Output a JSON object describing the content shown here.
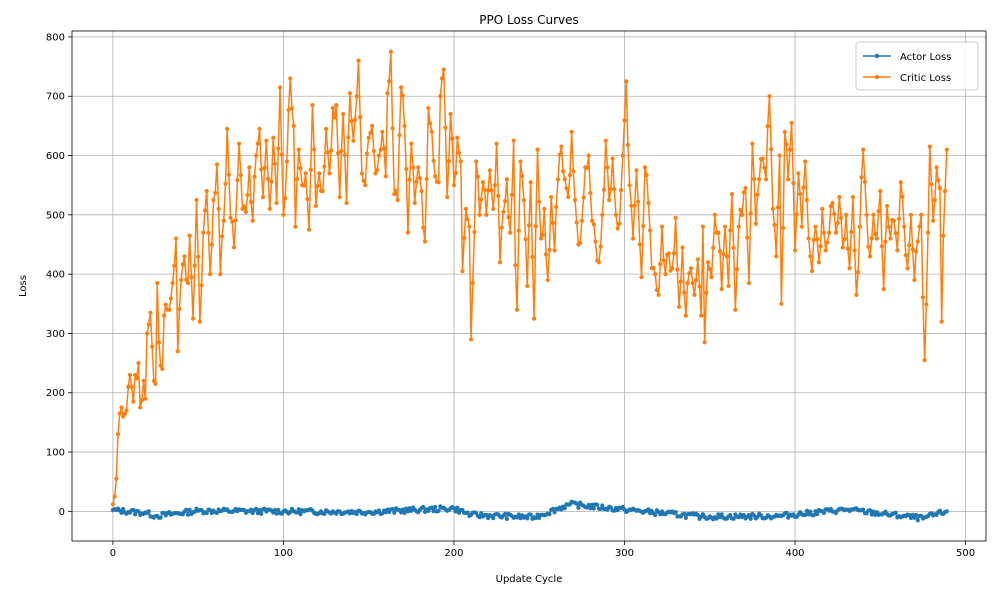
{
  "chart_data": {
    "type": "line",
    "title": "PPO Loss Curves",
    "xlabel": "Update Cycle",
    "ylabel": "Loss",
    "xlim": [
      -24,
      512
    ],
    "ylim": [
      -50,
      810
    ],
    "xticks": [
      0,
      100,
      200,
      300,
      400,
      500
    ],
    "yticks": [
      0,
      100,
      200,
      300,
      400,
      500,
      600,
      700,
      800
    ],
    "grid": true,
    "legend_position": "top-right",
    "colors": {
      "actor": "#1f77b4",
      "critic": "#ff7f0e"
    },
    "series_meta": [
      {
        "name": "Actor Loss",
        "color": "#1f77b4"
      },
      {
        "name": "Critic Loss",
        "color": "#ff7f0e"
      }
    ],
    "critic_anchors": [
      [
        0,
        12
      ],
      [
        1,
        25
      ],
      [
        2,
        55
      ],
      [
        3,
        130
      ],
      [
        4,
        165
      ],
      [
        5,
        175
      ],
      [
        6,
        160
      ],
      [
        8,
        170
      ],
      [
        9,
        210
      ],
      [
        10,
        230
      ],
      [
        12,
        185
      ],
      [
        13,
        230
      ],
      [
        15,
        250
      ],
      [
        16,
        175
      ],
      [
        18,
        220
      ],
      [
        19,
        190
      ],
      [
        20,
        300
      ],
      [
        22,
        335
      ],
      [
        24,
        220
      ],
      [
        25,
        215
      ],
      [
        26,
        385
      ],
      [
        27,
        285
      ],
      [
        29,
        240
      ],
      [
        30,
        330
      ],
      [
        33,
        340
      ],
      [
        35,
        385
      ],
      [
        37,
        460
      ],
      [
        38,
        270
      ],
      [
        40,
        390
      ],
      [
        42,
        430
      ],
      [
        44,
        385
      ],
      [
        45,
        465
      ],
      [
        47,
        325
      ],
      [
        49,
        525
      ],
      [
        51,
        320
      ],
      [
        53,
        470
      ],
      [
        55,
        540
      ],
      [
        57,
        400
      ],
      [
        59,
        525
      ],
      [
        61,
        585
      ],
      [
        63,
        400
      ],
      [
        65,
        490
      ],
      [
        67,
        645
      ],
      [
        69,
        495
      ],
      [
        71,
        445
      ],
      [
        74,
        620
      ],
      [
        76,
        510
      ],
      [
        78,
        505
      ],
      [
        80,
        580
      ],
      [
        82,
        490
      ],
      [
        84,
        600
      ],
      [
        86,
        645
      ],
      [
        88,
        530
      ],
      [
        90,
        625
      ],
      [
        92,
        510
      ],
      [
        94,
        630
      ],
      [
        96,
        520
      ],
      [
        98,
        715
      ],
      [
        100,
        500
      ],
      [
        102,
        590
      ],
      [
        104,
        730
      ],
      [
        106,
        650
      ],
      [
        107,
        480
      ],
      [
        109,
        610
      ],
      [
        111,
        550
      ],
      [
        113,
        570
      ],
      [
        115,
        475
      ],
      [
        117,
        685
      ],
      [
        119,
        515
      ],
      [
        121,
        570
      ],
      [
        123,
        540
      ],
      [
        125,
        645
      ],
      [
        127,
        570
      ],
      [
        129,
        680
      ],
      [
        131,
        685
      ],
      [
        133,
        530
      ],
      [
        135,
        670
      ],
      [
        137,
        520
      ],
      [
        139,
        705
      ],
      [
        141,
        625
      ],
      [
        143,
        700
      ],
      [
        144,
        760
      ],
      [
        146,
        570
      ],
      [
        148,
        550
      ],
      [
        150,
        630
      ],
      [
        152,
        650
      ],
      [
        154,
        570
      ],
      [
        156,
        600
      ],
      [
        158,
        640
      ],
      [
        160,
        565
      ],
      [
        161,
        705
      ],
      [
        163,
        775
      ],
      [
        165,
        535
      ],
      [
        167,
        525
      ],
      [
        169,
        715
      ],
      [
        171,
        650
      ],
      [
        173,
        470
      ],
      [
        175,
        620
      ],
      [
        177,
        520
      ],
      [
        179,
        580
      ],
      [
        181,
        540
      ],
      [
        183,
        455
      ],
      [
        185,
        680
      ],
      [
        187,
        640
      ],
      [
        189,
        565
      ],
      [
        191,
        555
      ],
      [
        192,
        700
      ],
      [
        194,
        745
      ],
      [
        196,
        530
      ],
      [
        198,
        670
      ],
      [
        200,
        550
      ],
      [
        202,
        630
      ],
      [
        204,
        590
      ],
      [
        205,
        405
      ],
      [
        207,
        510
      ],
      [
        209,
        480
      ],
      [
        210,
        290
      ],
      [
        211,
        385
      ],
      [
        213,
        590
      ],
      [
        215,
        500
      ],
      [
        217,
        555
      ],
      [
        219,
        500
      ],
      [
        221,
        575
      ],
      [
        223,
        510
      ],
      [
        225,
        620
      ],
      [
        227,
        420
      ],
      [
        229,
        505
      ],
      [
        231,
        560
      ],
      [
        233,
        470
      ],
      [
        235,
        625
      ],
      [
        236,
        415
      ],
      [
        237,
        340
      ],
      [
        239,
        590
      ],
      [
        241,
        525
      ],
      [
        243,
        380
      ],
      [
        245,
        555
      ],
      [
        247,
        325
      ],
      [
        249,
        610
      ],
      [
        251,
        460
      ],
      [
        253,
        510
      ],
      [
        255,
        390
      ],
      [
        257,
        530
      ],
      [
        259,
        440
      ],
      [
        261,
        560
      ],
      [
        263,
        615
      ],
      [
        265,
        560
      ],
      [
        267,
        530
      ],
      [
        269,
        640
      ],
      [
        271,
        525
      ],
      [
        273,
        450
      ],
      [
        275,
        490
      ],
      [
        277,
        580
      ],
      [
        279,
        600
      ],
      [
        281,
        490
      ],
      [
        283,
        455
      ],
      [
        285,
        420
      ],
      [
        287,
        500
      ],
      [
        289,
        625
      ],
      [
        291,
        525
      ],
      [
        293,
        595
      ],
      [
        295,
        500
      ],
      [
        297,
        485
      ],
      [
        299,
        600
      ],
      [
        301,
        725
      ],
      [
        303,
        550
      ],
      [
        305,
        460
      ],
      [
        307,
        575
      ],
      [
        309,
        450
      ],
      [
        310,
        395
      ],
      [
        312,
        580
      ],
      [
        314,
        520
      ],
      [
        316,
        410
      ],
      [
        318,
        400
      ],
      [
        320,
        365
      ],
      [
        322,
        480
      ],
      [
        324,
        400
      ],
      [
        326,
        435
      ],
      [
        328,
        410
      ],
      [
        330,
        495
      ],
      [
        332,
        345
      ],
      [
        334,
        445
      ],
      [
        336,
        330
      ],
      [
        337,
        385
      ],
      [
        339,
        410
      ],
      [
        341,
        365
      ],
      [
        343,
        425
      ],
      [
        345,
        330
      ],
      [
        346,
        480
      ],
      [
        347,
        285
      ],
      [
        349,
        420
      ],
      [
        351,
        395
      ],
      [
        353,
        500
      ],
      [
        355,
        470
      ],
      [
        357,
        375
      ],
      [
        359,
        480
      ],
      [
        361,
        380
      ],
      [
        363,
        535
      ],
      [
        365,
        340
      ],
      [
        367,
        480
      ],
      [
        369,
        500
      ],
      [
        371,
        545
      ],
      [
        373,
        385
      ],
      [
        375,
        620
      ],
      [
        377,
        485
      ],
      [
        379,
        560
      ],
      [
        381,
        595
      ],
      [
        383,
        560
      ],
      [
        385,
        700
      ],
      [
        387,
        510
      ],
      [
        389,
        430
      ],
      [
        391,
        600
      ],
      [
        392,
        350
      ],
      [
        394,
        640
      ],
      [
        396,
        560
      ],
      [
        398,
        655
      ],
      [
        400,
        440
      ],
      [
        402,
        570
      ],
      [
        404,
        480
      ],
      [
        406,
        590
      ],
      [
        408,
        460
      ],
      [
        410,
        405
      ],
      [
        412,
        480
      ],
      [
        414,
        420
      ],
      [
        416,
        510
      ],
      [
        418,
        440
      ],
      [
        420,
        470
      ],
      [
        422,
        520
      ],
      [
        424,
        470
      ],
      [
        426,
        530
      ],
      [
        428,
        445
      ],
      [
        430,
        500
      ],
      [
        432,
        410
      ],
      [
        434,
        530
      ],
      [
        436,
        365
      ],
      [
        438,
        480
      ],
      [
        440,
        610
      ],
      [
        442,
        500
      ],
      [
        444,
        430
      ],
      [
        446,
        500
      ],
      [
        448,
        460
      ],
      [
        450,
        540
      ],
      [
        452,
        375
      ],
      [
        454,
        515
      ],
      [
        456,
        460
      ],
      [
        458,
        490
      ],
      [
        460,
        440
      ],
      [
        462,
        555
      ],
      [
        464,
        480
      ],
      [
        466,
        410
      ],
      [
        468,
        500
      ],
      [
        470,
        390
      ],
      [
        472,
        455
      ],
      [
        474,
        500
      ],
      [
        476,
        255
      ],
      [
        478,
        470
      ],
      [
        479,
        615
      ],
      [
        481,
        490
      ],
      [
        483,
        580
      ],
      [
        485,
        545
      ],
      [
        486,
        320
      ],
      [
        487,
        465
      ],
      [
        488,
        540
      ],
      [
        489,
        610
      ]
    ],
    "actor_anchors": [
      [
        0,
        2
      ],
      [
        20,
        -3
      ],
      [
        25,
        -8
      ],
      [
        50,
        1
      ],
      [
        100,
        0
      ],
      [
        150,
        -1
      ],
      [
        200,
        5
      ],
      [
        210,
        -6
      ],
      [
        247,
        -10
      ],
      [
        268,
        12
      ],
      [
        300,
        3
      ],
      [
        345,
        -9
      ],
      [
        390,
        -8
      ],
      [
        430,
        3
      ],
      [
        475,
        -12
      ],
      [
        489,
        0
      ]
    ],
    "legend": [
      {
        "label": "Actor Loss"
      },
      {
        "label": "Critic Loss"
      }
    ]
  }
}
